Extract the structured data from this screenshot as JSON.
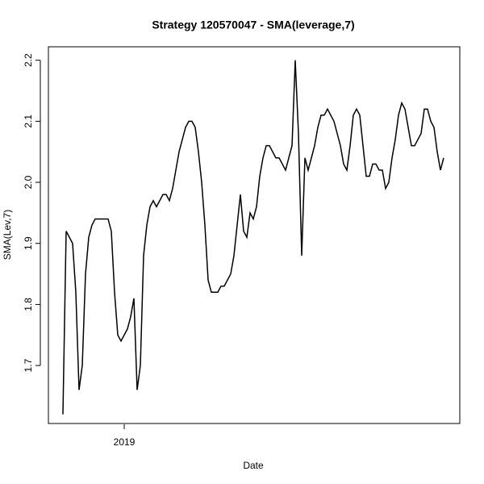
{
  "chart_data": {
    "type": "line",
    "title": "Strategy 120570047 - SMA(leverage,7)",
    "x_label": "Date",
    "y_label": "SMA(Lev,7)",
    "categories": [
      null,
      null,
      null,
      null,
      null,
      null,
      null,
      null,
      null,
      null,
      null,
      null,
      null,
      null,
      null,
      null,
      null,
      null,
      null,
      "2019",
      null,
      null,
      null,
      null,
      null,
      null,
      null,
      null,
      null,
      null,
      null,
      null,
      null,
      null,
      null,
      null,
      null,
      null,
      null,
      null,
      null,
      null,
      null,
      null,
      null,
      null,
      null,
      null,
      null,
      null,
      null,
      null,
      null,
      null,
      null,
      null,
      null,
      null,
      null,
      null,
      null,
      null,
      null,
      null,
      null,
      null,
      null,
      null,
      null,
      null,
      null,
      null,
      null,
      null,
      null,
      null,
      null,
      null,
      null,
      null,
      null,
      null,
      null,
      null,
      null,
      null,
      null,
      null,
      null,
      null,
      null,
      null,
      null,
      null,
      null,
      null,
      null,
      null,
      null,
      null,
      null,
      null,
      null,
      null,
      null,
      null,
      null,
      null,
      null,
      null,
      null,
      null,
      null,
      null,
      null,
      null,
      null,
      null,
      null
    ],
    "values": [
      1.62,
      1.92,
      1.91,
      1.9,
      1.82,
      1.66,
      1.7,
      1.85,
      1.91,
      1.93,
      1.94,
      1.94,
      1.94,
      1.94,
      1.94,
      1.92,
      1.82,
      1.75,
      1.74,
      1.75,
      1.76,
      1.78,
      1.81,
      1.66,
      1.7,
      1.88,
      1.93,
      1.96,
      1.97,
      1.96,
      1.97,
      1.98,
      1.98,
      1.97,
      1.99,
      2.02,
      2.05,
      2.07,
      2.09,
      2.1,
      2.1,
      2.09,
      2.05,
      2.0,
      1.93,
      1.84,
      1.82,
      1.82,
      1.82,
      1.83,
      1.83,
      1.84,
      1.85,
      1.88,
      1.93,
      1.98,
      1.92,
      1.91,
      1.95,
      1.94,
      1.96,
      2.01,
      2.04,
      2.06,
      2.06,
      2.05,
      2.04,
      2.04,
      2.03,
      2.02,
      2.04,
      2.06,
      2.2,
      2.08,
      1.88,
      2.04,
      2.02,
      2.04,
      2.06,
      2.09,
      2.11,
      2.11,
      2.12,
      2.11,
      2.1,
      2.08,
      2.06,
      2.03,
      2.02,
      2.06,
      2.11,
      2.12,
      2.11,
      2.06,
      2.01,
      2.01,
      2.03,
      2.03,
      2.02,
      2.02,
      1.99,
      2.0,
      2.04,
      2.07,
      2.11,
      2.13,
      2.12,
      2.09,
      2.06,
      2.06,
      2.07,
      2.08,
      2.12,
      2.12,
      2.1,
      2.09,
      2.05,
      2.02,
      2.04
    ],
    "color": "#000000",
    "ylim": [
      1.605,
      2.222
    ],
    "yticks": [
      1.7,
      1.8,
      1.9,
      {
        "value": 2,
        "label": "2.0"
      },
      2.1,
      2.2
    ]
  }
}
